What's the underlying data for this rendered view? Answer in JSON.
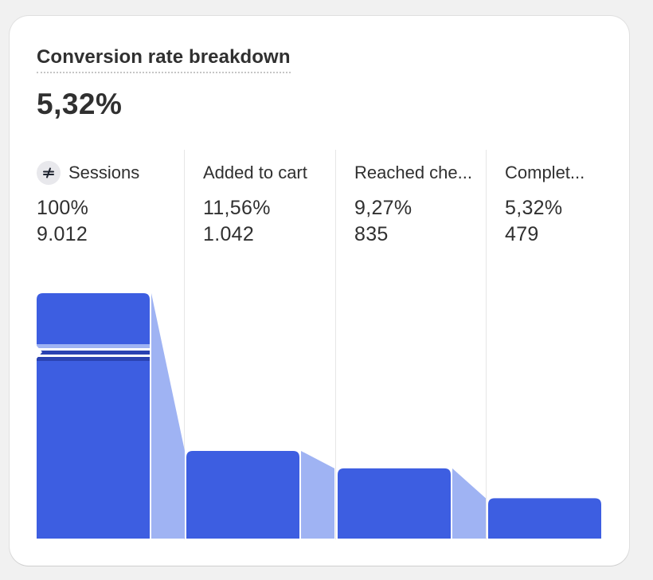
{
  "card": {
    "title": "Conversion rate breakdown",
    "value": "5,32%"
  },
  "colors": {
    "bar": "#3d5ee1",
    "bar_light": "#9fb3f3",
    "band": "#2a42b2",
    "badge_bg": "#e8e8ec"
  },
  "chart_data": {
    "type": "bar",
    "categories": [
      "Sessions",
      "Added to cart",
      "Reached che...",
      "Complet..."
    ],
    "values": [
      9012,
      1042,
      835,
      479
    ],
    "percent_labels": [
      "100%",
      "11,56%",
      "9,27%",
      "5,32%"
    ],
    "count_labels": [
      "9.012",
      "1.042",
      "835",
      "479"
    ],
    "axis_break_on_first_bar": true,
    "title": "Conversion rate breakdown",
    "xlabel": "",
    "ylabel": ""
  },
  "steps": [
    {
      "label": "Sessions",
      "icon": "sessions-icon",
      "pct": "100%",
      "count": "9.012"
    },
    {
      "label": "Added to cart",
      "pct": "11,56%",
      "count": "1.042"
    },
    {
      "label": "Reached che...",
      "pct": "9,27%",
      "count": "835"
    },
    {
      "label": "Complet...",
      "pct": "5,32%",
      "count": "479"
    }
  ]
}
